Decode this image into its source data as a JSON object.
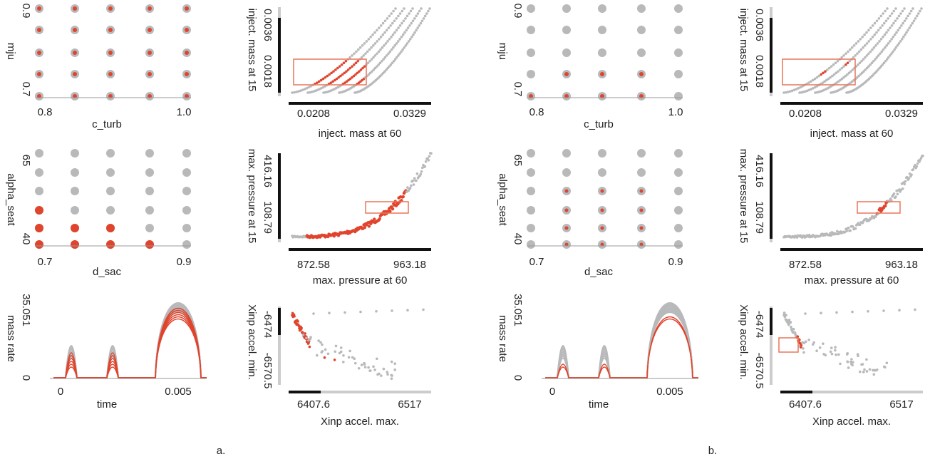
{
  "figures": [
    {
      "caption": "a.",
      "panels": [
        {
          "x_label": "c_turb",
          "y_label": "mju",
          "x_ticks": [
            "0.8",
            "1.0"
          ],
          "y_ticks": [
            "0.9",
            "0.7"
          ]
        },
        {
          "x_label": "inject. mass at 60",
          "y_label": "inject. mass at 15",
          "x_ticks": [
            "0.0208",
            "0.0329"
          ],
          "y_ticks": [
            "0.0036",
            "0.0018"
          ]
        },
        {
          "x_label": "d_sac",
          "y_label": "alpha_seat",
          "x_ticks": [
            "0.7",
            "0.9"
          ],
          "y_ticks": [
            "65",
            "40"
          ]
        },
        {
          "x_label": "max. pressure at 60",
          "y_label": "max. pressure at 15",
          "x_ticks": [
            "872.58",
            "963.18"
          ],
          "y_ticks": [
            "416.16",
            "108.79"
          ]
        },
        {
          "x_label": "time",
          "y_label": "mass rate",
          "x_ticks": [
            "0",
            "0.005"
          ],
          "y_ticks": [
            "35.051",
            "0"
          ]
        },
        {
          "x_label": "Xinp accel. max.",
          "y_label": "Xinp accel. min.",
          "x_ticks": [
            "6407.6",
            "6517"
          ],
          "y_ticks": [
            "-6474",
            "-6570.5"
          ]
        }
      ]
    },
    {
      "caption": "b.",
      "panels": [
        {
          "x_label": "c_turb",
          "y_label": "mju",
          "x_ticks": [
            "0.8",
            "1.0"
          ],
          "y_ticks": [
            "0.9",
            "0.7"
          ]
        },
        {
          "x_label": "inject. mass at 60",
          "y_label": "inject. mass at 15",
          "x_ticks": [
            "0.0208",
            "0.0329"
          ],
          "y_ticks": [
            "0.0036",
            "0.0018"
          ]
        },
        {
          "x_label": "d_sac",
          "y_label": "alpha_seat",
          "x_ticks": [
            "0.7",
            "0.9"
          ],
          "y_ticks": [
            "65",
            "40"
          ]
        },
        {
          "x_label": "max. pressure at 60",
          "y_label": "max. pressure at 15",
          "x_ticks": [
            "872.58",
            "963.18"
          ],
          "y_ticks": [
            "416.16",
            "108.79"
          ]
        },
        {
          "x_label": "time",
          "y_label": "mass rate",
          "x_ticks": [
            "0",
            "0.005"
          ],
          "y_ticks": [
            "35.051",
            "0"
          ]
        },
        {
          "x_label": "Xinp accel. max.",
          "y_label": "Xinp accel. min.",
          "x_ticks": [
            "6407.6",
            "6517"
          ],
          "y_ticks": [
            "-6474",
            "-6570.5"
          ]
        }
      ]
    }
  ]
}
